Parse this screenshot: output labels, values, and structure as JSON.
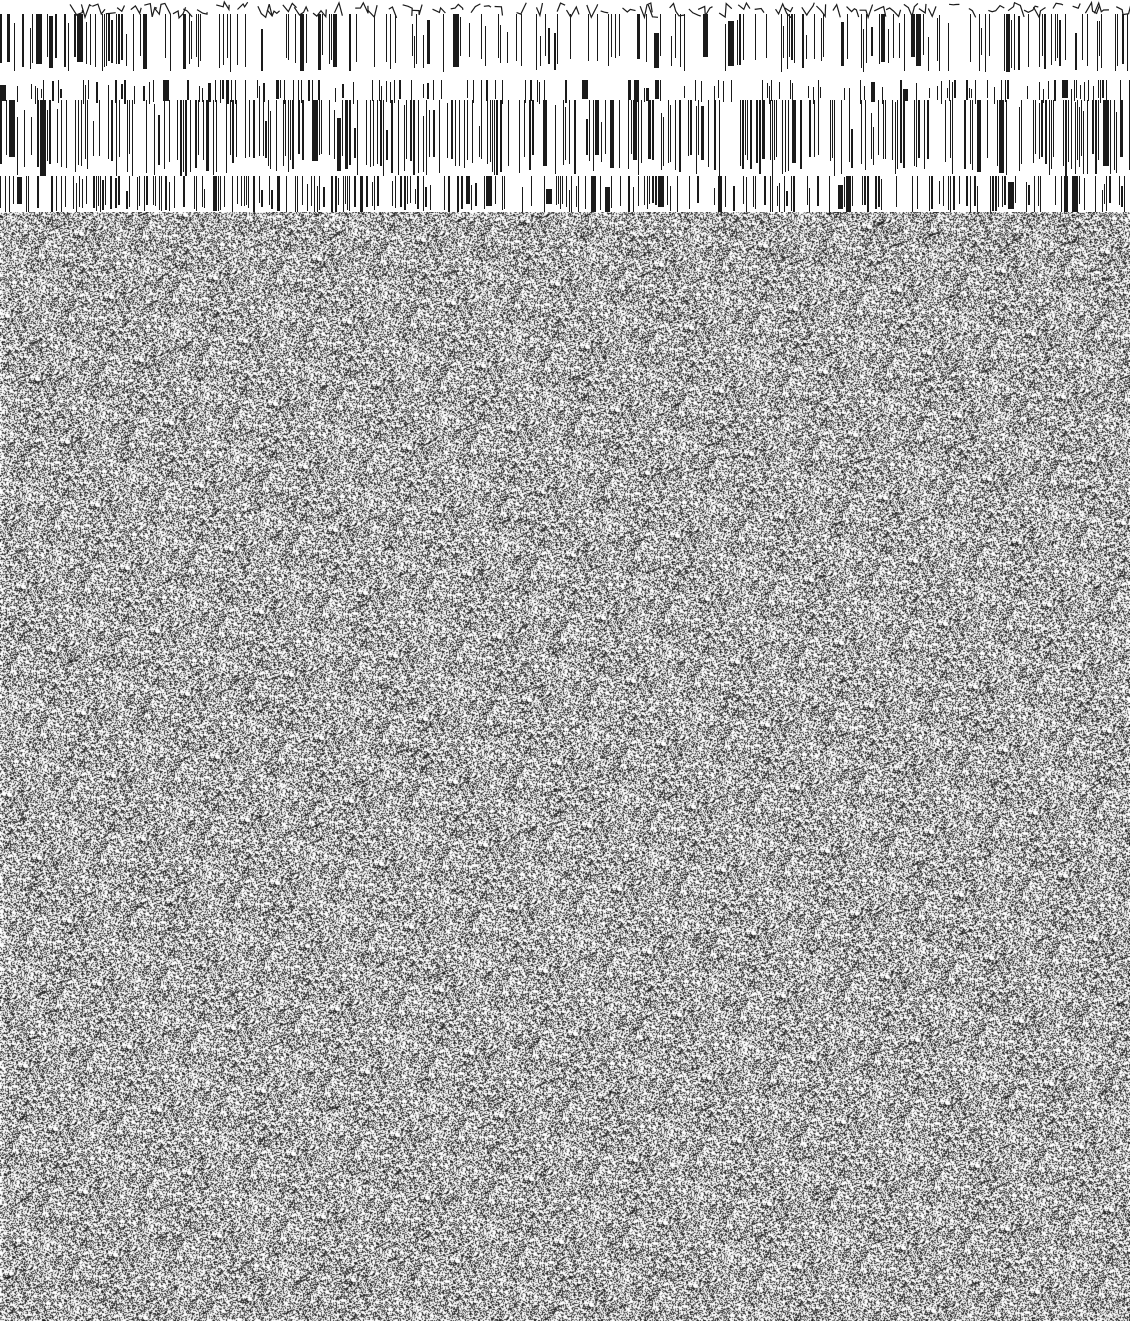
{
  "image": {
    "visible_text": []
  },
  "colors": {
    "background": "#ffffff",
    "ink": "#1a1a1a",
    "noise_mid": "#8c8c8c",
    "noise_dark": "#2b2b2b",
    "noise_light": "#e6e6e6"
  }
}
